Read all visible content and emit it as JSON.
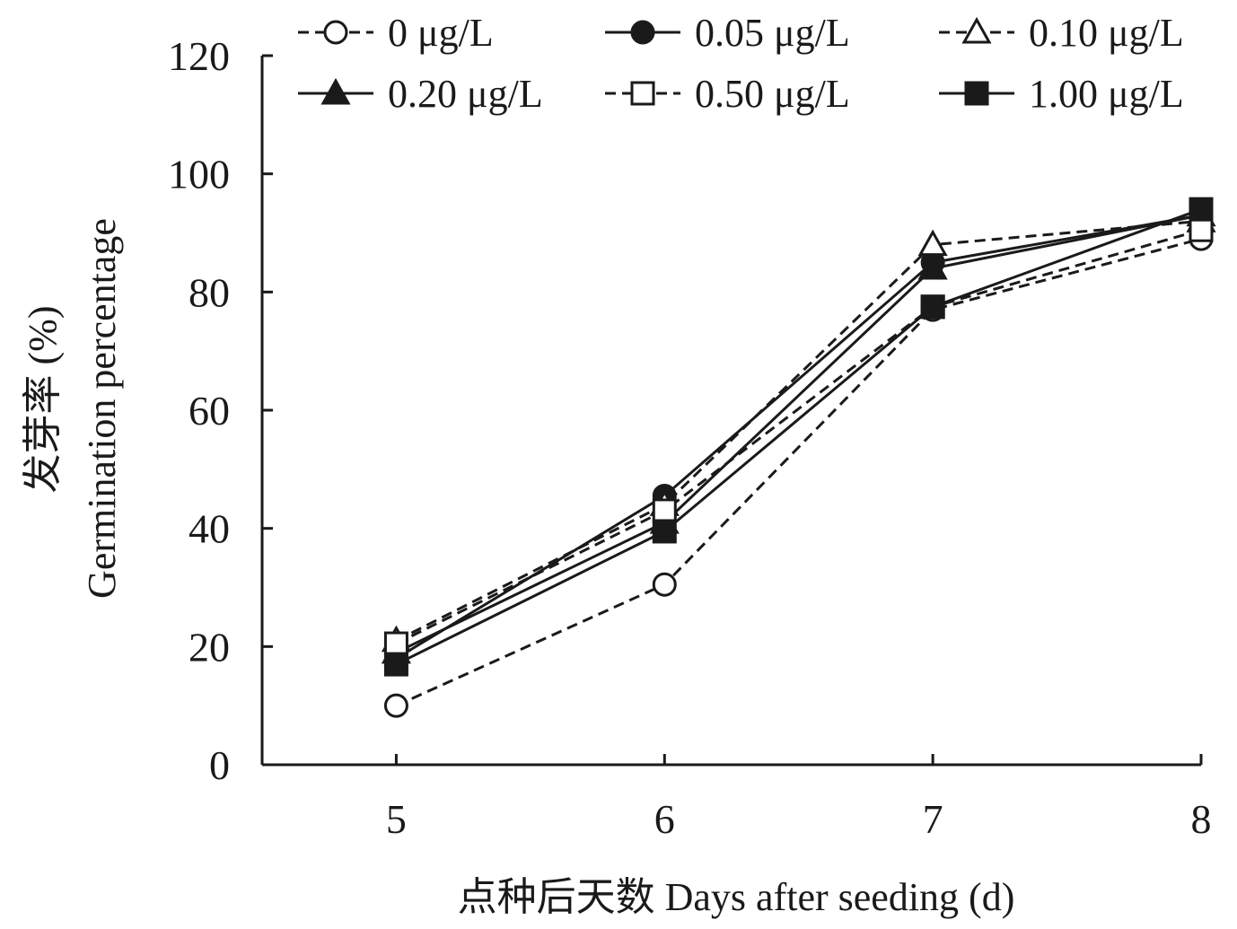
{
  "chart_data": {
    "type": "line",
    "x": [
      5,
      6,
      7,
      8
    ],
    "xlabel": "点种后天数 Days after seeding (d)",
    "ylabel_cn": "发芽率 (%)",
    "ylabel_en": "Germination percentage",
    "xlim": [
      4.5,
      8
    ],
    "ylim": [
      0,
      120
    ],
    "x_ticks": [
      5,
      6,
      7,
      8
    ],
    "y_ticks": [
      0,
      20,
      40,
      60,
      80,
      100,
      120
    ],
    "grid": false,
    "legend_position": "top",
    "series": [
      {
        "name": "0 μg/L",
        "values": [
          10,
          30.5,
          77,
          89
        ],
        "marker": "circle",
        "filled": false,
        "dashed": true
      },
      {
        "name": "0.05 μg/L",
        "values": [
          18,
          45.5,
          85,
          93
        ],
        "marker": "circle",
        "filled": true,
        "dashed": false
      },
      {
        "name": "0.10 μg/L",
        "values": [
          21,
          44,
          88,
          92
        ],
        "marker": "triangle",
        "filled": false,
        "dashed": true
      },
      {
        "name": "0.20 μg/L",
        "values": [
          19,
          41,
          84,
          93
        ],
        "marker": "triangle",
        "filled": true,
        "dashed": false
      },
      {
        "name": "0.50 μg/L",
        "values": [
          20.5,
          43,
          77.5,
          90.5
        ],
        "marker": "square",
        "filled": false,
        "dashed": true
      },
      {
        "name": "1.00 μg/L",
        "values": [
          17,
          39.5,
          77.5,
          94
        ],
        "marker": "square",
        "filled": true,
        "dashed": false
      }
    ]
  }
}
